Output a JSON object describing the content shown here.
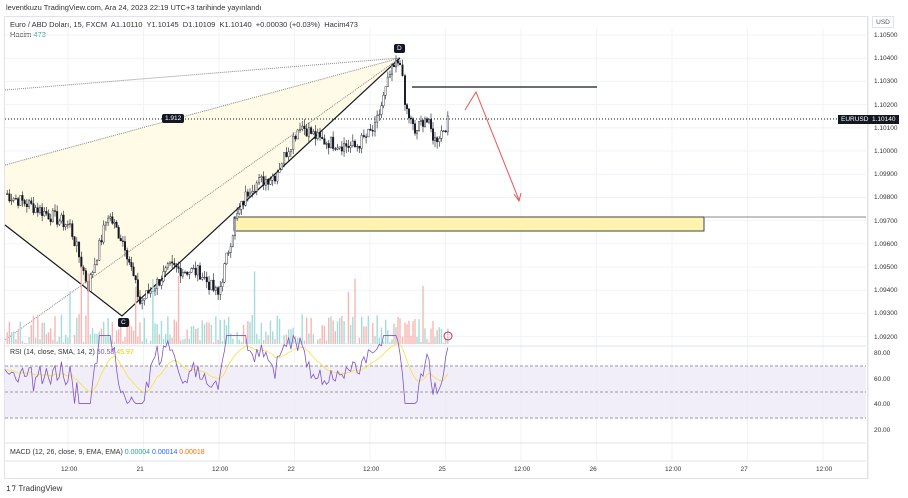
{
  "header": {
    "published": "leventkuzu TradingView.com, Ara 24, 2023 22:19 UTC+3 tarihinde yayınlandı"
  },
  "legend": {
    "symbol": "Euro / ABD Doları, 15, FXCM",
    "open": "A1.10110",
    "high": "Y1.10145",
    "low": "D1.10109",
    "close": "K1.10140",
    "change": "+0.00030 (+0.03%)",
    "volume_title": "Hacim473",
    "volume_label": "Hacim",
    "volume_value": "473"
  },
  "price_axis": {
    "currency": "USD",
    "ticks": [
      "1.10500",
      "1.10400",
      "1.10300",
      "1.10200",
      "1.10100",
      "1.10000",
      "1.09900",
      "1.09800",
      "1.09700",
      "1.09600",
      "1.09500",
      "1.09400",
      "1.09300",
      "1.09200"
    ],
    "symbol_tag": "EURUSD",
    "last_price": "1.10140"
  },
  "drawings": {
    "label_d": "D",
    "label_c": "C",
    "ratio": "1.912"
  },
  "rsi": {
    "title": "RSI (14, close, SMA, 14, 2)",
    "value": "50.58",
    "sma": "45.97",
    "ticks": [
      "80.00",
      "60.00",
      "40.00",
      "20.00"
    ]
  },
  "macd": {
    "title": "MACD (12, 26, close, 9, EMA, EMA)",
    "hist": "0.00004",
    "macd": "0.00014",
    "signal": "0.00018"
  },
  "time_axis": [
    "12:00",
    "21",
    "12:00",
    "22",
    "12:00",
    "25",
    "12:00",
    "26",
    "12:00",
    "27",
    "12:00"
  ],
  "footer": {
    "brand": "TradingView"
  },
  "colors": {
    "up": "#26a69a",
    "down": "#ef5350",
    "rsi": "#7e57c2",
    "rsi_sma": "#f7e13d",
    "macd_hist": "#26a69a",
    "macd": "#2962ff",
    "signal": "#ff6d00"
  },
  "chart_data": {
    "type": "line",
    "note": "approximate EURUSD 15m path; x = hours from Dec 21 00:00",
    "points": [
      [
        -22.4,
        1.0982
      ],
      [
        -16.8,
        1.0975
      ],
      [
        -12,
        1.0968
      ],
      [
        -9.1,
        1.0942
      ],
      [
        -5.9,
        1.0973
      ],
      [
        -3.2,
        1.096
      ],
      [
        -0.8,
        1.0935
      ],
      [
        4,
        1.095
      ],
      [
        8.8,
        1.0948
      ],
      [
        11.7,
        1.0938
      ],
      [
        14.4,
        1.097
      ],
      [
        16.8,
        1.0985
      ],
      [
        20.8,
        1.099
      ],
      [
        24.8,
        1.1012
      ],
      [
        28,
        1.1005
      ],
      [
        33.6,
        1.1002
      ],
      [
        36.8,
        1.101
      ],
      [
        39.2,
        1.1033
      ],
      [
        40.8,
        1.104
      ],
      [
        41.6,
        1.102
      ],
      [
        43.2,
        1.1008
      ],
      [
        44.8,
        1.1015
      ],
      [
        46.4,
        1.1005
      ],
      [
        48.8,
        1.1014
      ]
    ]
  }
}
